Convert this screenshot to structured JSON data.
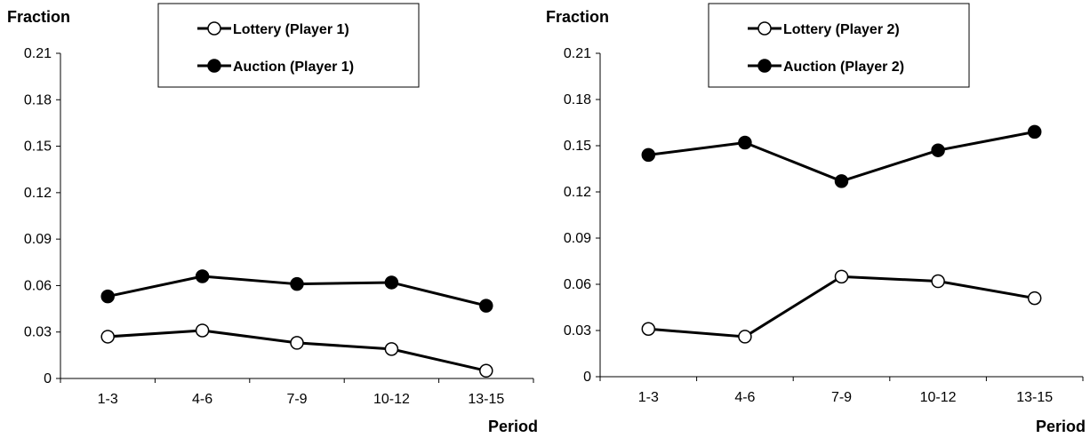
{
  "chart_data": [
    {
      "type": "line",
      "ylabel": "Fraction",
      "xlabel": "Period",
      "categories": [
        "1-3",
        "4-6",
        "7-9",
        "10-12",
        "13-15"
      ],
      "ylim": [
        0,
        0.21
      ],
      "yticks": [
        "0",
        "0.03",
        "0.06",
        "0.09",
        "0.12",
        "0.15",
        "0.18",
        "0.21"
      ],
      "grid": false,
      "legend_position": "top",
      "series": [
        {
          "name": "Lottery (Player 1)",
          "marker": "open",
          "values": [
            0.027,
            0.031,
            0.023,
            0.019,
            0.005
          ]
        },
        {
          "name": "Auction (Player 1)",
          "marker": "filled",
          "values": [
            0.053,
            0.066,
            0.061,
            0.062,
            0.047
          ]
        }
      ]
    },
    {
      "type": "line",
      "ylabel": "Fraction",
      "xlabel": "Period",
      "categories": [
        "1-3",
        "4-6",
        "7-9",
        "10-12",
        "13-15"
      ],
      "ylim": [
        0,
        0.21
      ],
      "yticks": [
        "0",
        "0.03",
        "0.06",
        "0.09",
        "0.12",
        "0.15",
        "0.18",
        "0.21"
      ],
      "grid": false,
      "legend_position": "top",
      "series": [
        {
          "name": "Lottery (Player 2)",
          "marker": "open",
          "values": [
            0.031,
            0.026,
            0.065,
            0.062,
            0.051
          ]
        },
        {
          "name": "Auction (Player 2)",
          "marker": "filled",
          "values": [
            0.144,
            0.152,
            0.127,
            0.147,
            0.159
          ]
        }
      ]
    }
  ]
}
